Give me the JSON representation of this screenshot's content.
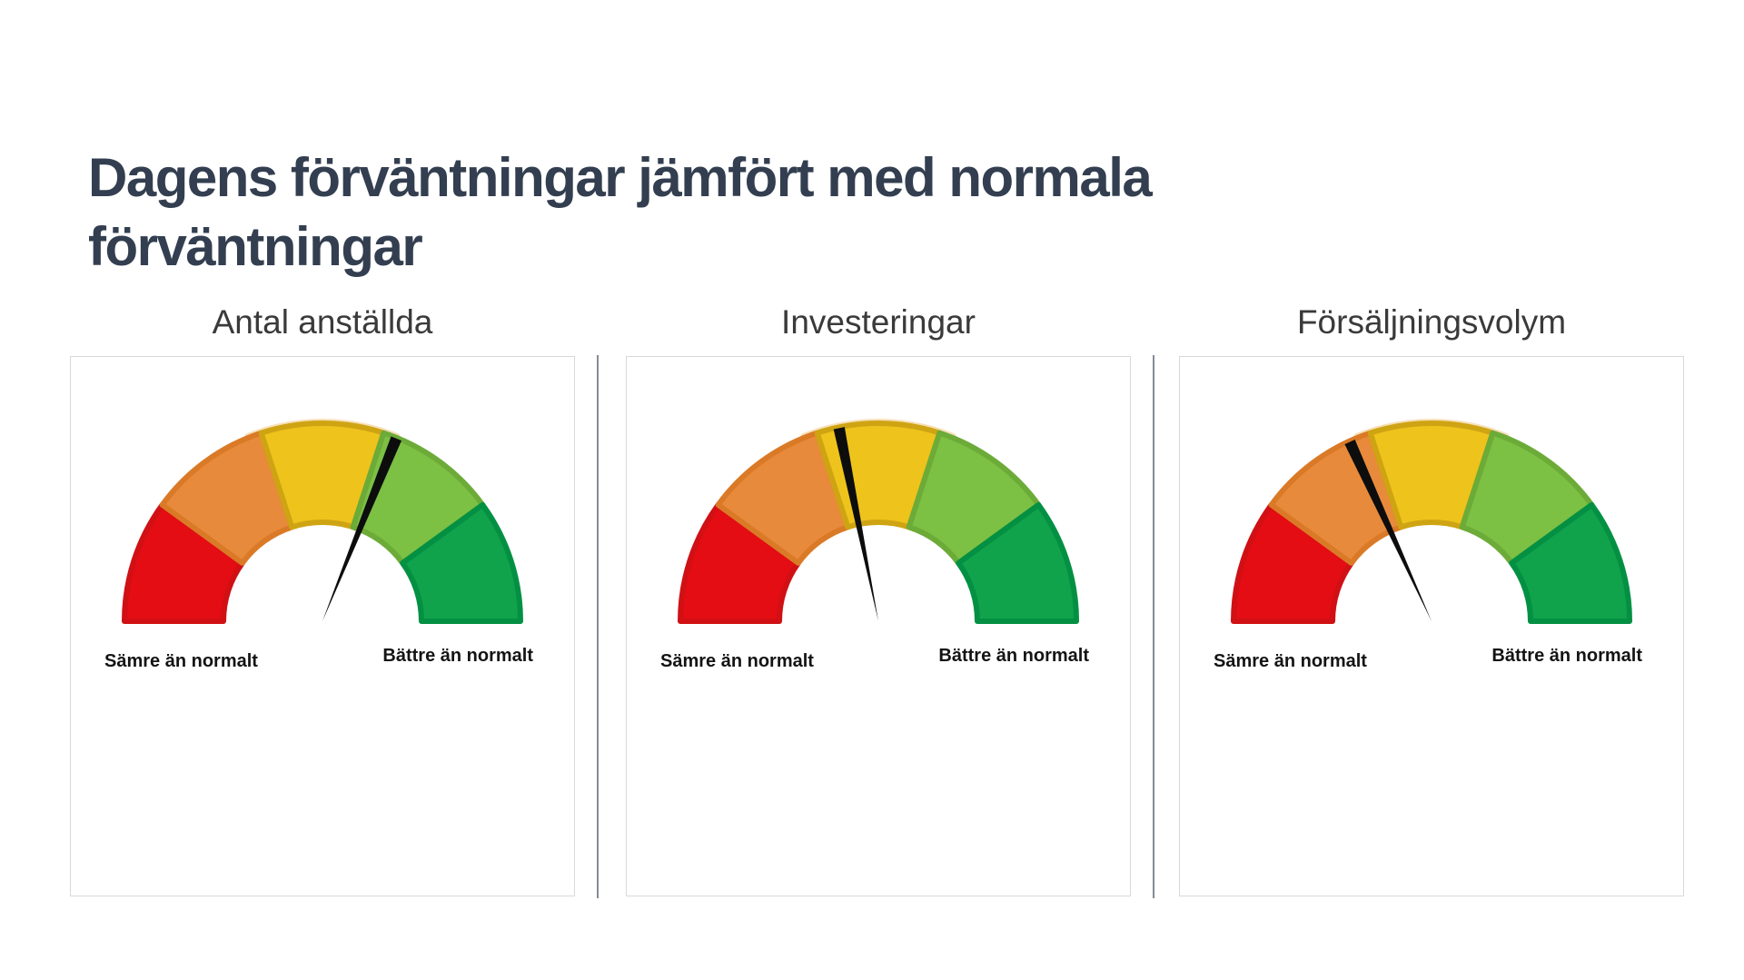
{
  "page": {
    "title": "Dagens förväntningar jämfört med normala förväntningar",
    "title_color": "#333f50",
    "background_color": "#ffffff"
  },
  "chart_data": [
    {
      "type": "gauge",
      "title": "Antal anställda",
      "min_label": "Sämre än normalt",
      "max_label": "Bättre än normalt",
      "value_fraction": 0.62,
      "needle_angle_deg_from_vertical": 22,
      "scale_range": [
        0,
        1
      ]
    },
    {
      "type": "gauge",
      "title": "Investeringar",
      "min_label": "Sämre än normalt",
      "max_label": "Bättre än normalt",
      "value_fraction": 0.44,
      "needle_angle_deg_from_vertical": -11.5,
      "scale_range": [
        0,
        1
      ]
    },
    {
      "type": "gauge",
      "title": "Försäljningsvolym",
      "min_label": "Sämre än normalt",
      "max_label": "Bättre än normalt",
      "value_fraction": 0.36,
      "needle_angle_deg_from_vertical": -24.5,
      "scale_range": [
        0,
        1
      ]
    }
  ],
  "gauge_scale": {
    "segment_sweep_deg": 36,
    "segments": [
      {
        "name": "much-worse",
        "fill": "#e30d13",
        "edge": "#d01014"
      },
      {
        "name": "worse",
        "fill": "#e88a3c",
        "edge": "#da7a27"
      },
      {
        "name": "normal",
        "fill": "#eec31c",
        "edge": "#cfa413"
      },
      {
        "name": "better",
        "fill": "#7cc044",
        "edge": "#6cab38"
      },
      {
        "name": "much-better",
        "fill": "#10a34c",
        "edge": "#049043"
      }
    ],
    "needle_color": "#0d0d0d",
    "top_glow_color": "#f4d8a6"
  },
  "layout_text": {
    "note": ""
  }
}
